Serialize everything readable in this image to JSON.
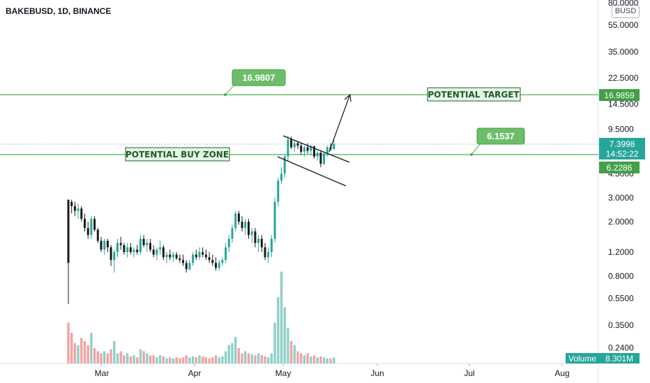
{
  "header": {
    "symbol": "BAKEBUSD, 1D, BINANCE",
    "currency": "BUSD"
  },
  "annotations": {
    "target_callout": "16.9807",
    "buyzone_callout": "6.1537",
    "target_box": "POTENTIAL TARGET",
    "buy_box": "POTENTIAL BUY ZONE"
  },
  "price_tags": {
    "target": "16.9859",
    "last_price": "7.3998",
    "countdown": "14:52:22",
    "buy_level": "6.2286",
    "volume_label": "Volume",
    "volume_value": "8.301M"
  },
  "colors": {
    "up": "#26a69a",
    "down": "#1a1a1a",
    "level": "#4caf50",
    "label_bg": "#6dbd6a",
    "vol_up": "#8fd0c6",
    "vol_down": "#f0a3a3"
  },
  "chart_data": {
    "type": "candlestick",
    "scale": "log",
    "y_ticks": [
      "80.0000",
      "55.0000",
      "35.0000",
      "22.5000",
      "14.5000",
      "9.5000",
      "4.5000",
      "3.0000",
      "2.0000",
      "1.2000",
      "0.8000",
      "0.5500",
      "0.3500",
      "0.2400"
    ],
    "x_ticks": [
      "Mar",
      "Apr",
      "May",
      "Jun",
      "Jul",
      "Aug"
    ],
    "levels": [
      {
        "name": "POTENTIAL TARGET",
        "value": 16.9859
      },
      {
        "name": "POTENTIAL BUY ZONE",
        "value": 6.2286
      }
    ],
    "ohlc": [
      [
        2.9,
        2.9,
        0.5,
        1.0
      ],
      [
        2.8,
        2.9,
        2.3,
        2.6
      ],
      [
        2.6,
        2.8,
        2.2,
        2.4
      ],
      [
        2.4,
        2.7,
        2.1,
        2.5
      ],
      [
        2.5,
        2.6,
        2.0,
        2.1
      ],
      [
        2.1,
        2.3,
        1.7,
        1.8
      ],
      [
        1.8,
        2.0,
        1.5,
        1.6
      ],
      [
        1.6,
        2.2,
        1.5,
        2.1
      ],
      [
        2.1,
        2.2,
        1.7,
        1.75
      ],
      [
        1.75,
        1.8,
        1.4,
        1.45
      ],
      [
        1.45,
        1.55,
        1.2,
        1.25
      ],
      [
        1.25,
        1.5,
        1.15,
        1.45
      ],
      [
        1.45,
        1.5,
        1.2,
        1.3
      ],
      [
        1.3,
        1.35,
        0.95,
        1.05
      ],
      [
        1.05,
        1.25,
        0.85,
        1.2
      ],
      [
        1.2,
        1.5,
        1.1,
        1.4
      ],
      [
        1.4,
        1.55,
        1.25,
        1.35
      ],
      [
        1.35,
        1.4,
        1.15,
        1.2
      ],
      [
        1.2,
        1.4,
        1.1,
        1.3
      ],
      [
        1.3,
        1.4,
        1.15,
        1.2
      ],
      [
        1.2,
        1.3,
        1.1,
        1.25
      ],
      [
        1.25,
        1.35,
        1.15,
        1.2
      ],
      [
        1.2,
        1.6,
        1.15,
        1.5
      ],
      [
        1.5,
        1.6,
        1.3,
        1.35
      ],
      [
        1.35,
        1.5,
        1.2,
        1.4
      ],
      [
        1.4,
        1.5,
        1.2,
        1.25
      ],
      [
        1.25,
        1.35,
        1.1,
        1.15
      ],
      [
        1.15,
        1.3,
        1.05,
        1.25
      ],
      [
        1.25,
        1.45,
        1.15,
        1.3
      ],
      [
        1.3,
        1.35,
        1.05,
        1.1
      ],
      [
        1.1,
        1.2,
        1.0,
        1.15
      ],
      [
        1.15,
        1.25,
        1.05,
        1.1
      ],
      [
        1.1,
        1.2,
        1.02,
        1.15
      ],
      [
        1.15,
        1.2,
        1.05,
        1.08
      ],
      [
        1.08,
        1.15,
        1.0,
        1.05
      ],
      [
        1.05,
        1.15,
        0.95,
        1.0
      ],
      [
        1.0,
        1.05,
        0.85,
        0.9
      ],
      [
        0.9,
        1.05,
        0.88,
        1.0
      ],
      [
        1.0,
        1.2,
        0.95,
        1.15
      ],
      [
        1.15,
        1.25,
        1.05,
        1.1
      ],
      [
        1.1,
        1.3,
        1.05,
        1.2
      ],
      [
        1.2,
        1.3,
        1.1,
        1.15
      ],
      [
        1.15,
        1.25,
        1.05,
        1.1
      ],
      [
        1.1,
        1.2,
        1.0,
        1.05
      ],
      [
        1.05,
        1.15,
        0.95,
        1.0
      ],
      [
        1.0,
        1.1,
        0.88,
        0.92
      ],
      [
        0.92,
        1.05,
        0.88,
        1.0
      ],
      [
        1.0,
        1.1,
        0.95,
        1.05
      ],
      [
        1.05,
        1.4,
        1.0,
        1.3
      ],
      [
        1.3,
        1.6,
        1.2,
        1.5
      ],
      [
        1.5,
        1.9,
        1.4,
        1.8
      ],
      [
        1.8,
        2.4,
        1.7,
        2.3
      ],
      [
        2.3,
        2.4,
        1.9,
        2.0
      ],
      [
        2.0,
        2.2,
        1.7,
        1.8
      ],
      [
        1.8,
        2.1,
        1.6,
        2.0
      ],
      [
        2.0,
        2.1,
        1.5,
        1.6
      ],
      [
        1.6,
        1.8,
        1.4,
        1.7
      ],
      [
        1.7,
        1.8,
        1.3,
        1.4
      ],
      [
        1.4,
        1.6,
        1.2,
        1.5
      ],
      [
        1.5,
        1.6,
        1.2,
        1.3
      ],
      [
        1.3,
        1.4,
        1.05,
        1.1
      ],
      [
        1.1,
        1.3,
        1.0,
        1.2
      ],
      [
        1.2,
        1.6,
        1.1,
        1.5
      ],
      [
        1.5,
        3.0,
        1.4,
        2.8
      ],
      [
        2.8,
        4.2,
        2.6,
        4.0
      ],
      [
        4.0,
        5.0,
        3.8,
        4.5
      ],
      [
        4.5,
        6.2,
        4.2,
        6.0
      ],
      [
        6.0,
        8.5,
        5.5,
        8.0
      ],
      [
        8.0,
        8.4,
        6.8,
        7.0
      ],
      [
        7.0,
        7.8,
        6.5,
        7.5
      ],
      [
        7.5,
        7.8,
        6.8,
        7.2
      ],
      [
        7.2,
        7.5,
        6.2,
        6.5
      ],
      [
        6.5,
        7.2,
        6.0,
        7.0
      ],
      [
        7.0,
        7.5,
        6.3,
        6.6
      ],
      [
        6.6,
        7.3,
        6.1,
        7.1
      ],
      [
        7.1,
        7.2,
        5.8,
        6.0
      ],
      [
        6.0,
        6.6,
        5.6,
        6.4
      ],
      [
        6.4,
        6.6,
        5.0,
        5.3
      ],
      [
        5.3,
        6.5,
        5.2,
        6.3
      ],
      [
        6.3,
        7.2,
        6.0,
        7.0
      ],
      [
        7.0,
        7.5,
        6.6,
        6.8
      ],
      [
        6.8,
        8.1,
        6.7,
        7.4
      ]
    ],
    "volume": [
      0.4,
      0.3,
      0.2,
      0.18,
      0.25,
      0.22,
      0.18,
      0.3,
      0.15,
      0.12,
      0.1,
      0.12,
      0.1,
      0.14,
      0.22,
      0.1,
      0.12,
      0.08,
      0.1,
      0.07,
      0.08,
      0.06,
      0.14,
      0.12,
      0.1,
      0.08,
      0.08,
      0.06,
      0.08,
      0.07,
      0.05,
      0.06,
      0.05,
      0.06,
      0.05,
      0.06,
      0.08,
      0.06,
      0.07,
      0.06,
      0.08,
      0.07,
      0.06,
      0.05,
      0.06,
      0.08,
      0.06,
      0.07,
      0.12,
      0.18,
      0.2,
      0.26,
      0.15,
      0.1,
      0.12,
      0.1,
      0.09,
      0.08,
      0.1,
      0.08,
      0.07,
      0.06,
      0.1,
      0.4,
      0.65,
      0.9,
      0.55,
      0.35,
      0.22,
      0.18,
      0.12,
      0.1,
      0.08,
      0.1,
      0.07,
      0.08,
      0.06,
      0.07,
      0.06,
      0.05,
      0.05,
      0.06
    ]
  }
}
